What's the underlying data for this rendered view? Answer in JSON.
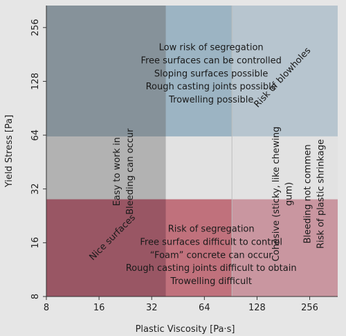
{
  "chart_data": {
    "type": "area",
    "xlabel": "Plastic Viscosity [Pa·s]",
    "ylabel": "Yield Stress [Pa]",
    "xscale": "log2",
    "yscale": "log2",
    "xlim": [
      8,
      370
    ],
    "ylim": [
      8,
      340
    ],
    "xticks": [
      8,
      16,
      32,
      64,
      128,
      256
    ],
    "yticks": [
      8,
      16,
      32,
      64,
      128,
      256
    ],
    "grid": false,
    "regions": [
      {
        "x": [
          8,
          38.5
        ],
        "y": [
          63,
          340
        ],
        "color": "#3f4e5e",
        "opacity": 0.55
      },
      {
        "x": [
          8,
          92
        ],
        "y": [
          63,
          340
        ],
        "color": "#5f8ea8",
        "opacity": 0.4
      },
      {
        "x": [
          8,
          370
        ],
        "y": [
          63,
          340
        ],
        "color": "#8ca7bb",
        "opacity": 0.5
      },
      {
        "x": [
          8,
          38.5
        ],
        "y": [
          8,
          340
        ],
        "color": "#8a8a8a",
        "opacity": 0.55
      },
      {
        "x": [
          8,
          370
        ],
        "y": [
          8,
          28
        ],
        "color": "#c07c89",
        "opacity": 0.75
      },
      {
        "x": [
          8,
          92
        ],
        "y": [
          8,
          28
        ],
        "color": "#b8545e",
        "opacity": 0.55
      },
      {
        "x": [
          8,
          38.5
        ],
        "y": [
          8,
          28
        ],
        "color": "#6a3848",
        "opacity": 0.4
      }
    ],
    "region_colors": {
      "stiff_paste": "#3f4e5e",
      "fluid_mix": "#c07c89",
      "boundary_line": "#bdbdbd"
    },
    "annotations": [
      {
        "lines": [
          "Low risk of segregation",
          "Free surfaces can be controlled",
          "Sloping surfaces possible",
          "Rough casting joints possible",
          "Trowelling possible"
        ],
        "x": 70,
        "y": 142,
        "rotate": 0,
        "size": 13
      },
      {
        "lines": [
          "Risk of blowholes"
        ],
        "x": 178,
        "y": 135,
        "rotate": -47,
        "size": 13
      },
      {
        "lines": [
          "Easy to work in",
          "Bleeding can occur"
        ],
        "x": 22,
        "y": 40,
        "rotate": -90,
        "size": 13
      },
      {
        "lines": [
          "Cohesive (sticky, like chewing",
          "gum)"
        ],
        "x": 178,
        "y": 30,
        "rotate": -90,
        "size": 13
      },
      {
        "lines": [
          "Bleeding not commen",
          "Risk of plastic shrinkage"
        ],
        "x": 270,
        "y": 30,
        "rotate": -90,
        "size": 13
      },
      {
        "lines": [
          "Nice surfaces"
        ],
        "x": 19,
        "y": 17.2,
        "rotate": -45,
        "size": 13
      },
      {
        "lines": [
          "Risk of segregation",
          "Free surfaces difficult to control",
          "“Foam” concrete can occur",
          "Rough casting joints difficult to obtain",
          "Trowelling difficult"
        ],
        "x": 70,
        "y": 13.7,
        "rotate": 0,
        "size": 13
      }
    ]
  }
}
